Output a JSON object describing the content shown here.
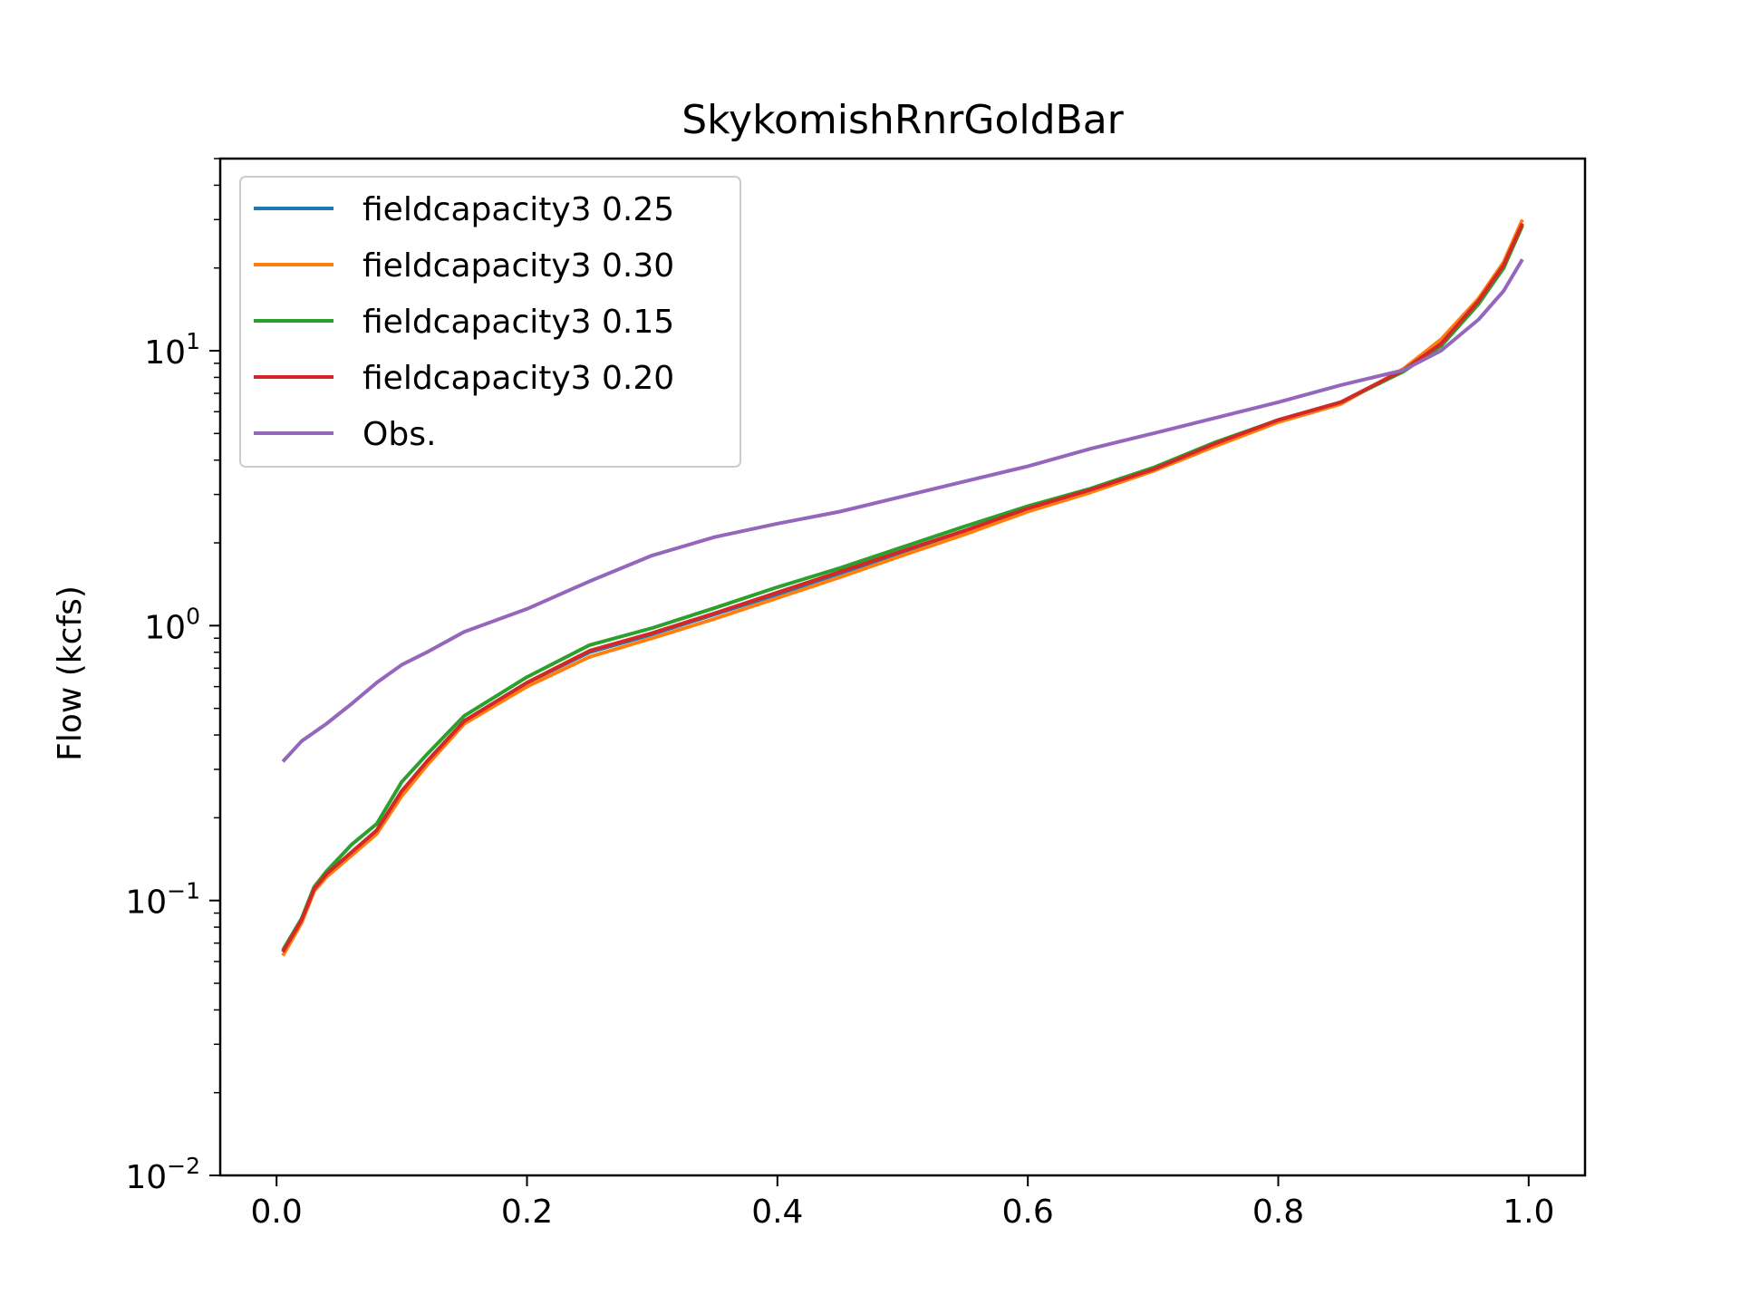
{
  "chart_data": {
    "type": "line",
    "title": "SkykomishRnrGoldBar",
    "xlabel": "",
    "ylabel": "Flow (kcfs)",
    "xlim": [
      -0.045,
      1.045
    ],
    "ylim": [
      0.01,
      50
    ],
    "y_scale": "log",
    "x_ticks": [
      "0.0",
      "0.2",
      "0.4",
      "0.6",
      "0.8",
      "1.0"
    ],
    "y_ticks": [
      {
        "base": "10",
        "exp": "−2",
        "value": 0.01
      },
      {
        "base": "10",
        "exp": "−1",
        "value": 0.1
      },
      {
        "base": "10",
        "exp": "0",
        "value": 1
      },
      {
        "base": "10",
        "exp": "1",
        "value": 10
      }
    ],
    "grid": false,
    "legend_position": "upper-left",
    "series": [
      {
        "name": "fieldcapacity3 0.25",
        "color": "#1f77b4",
        "x": [
          0.005,
          0.02,
          0.03,
          0.04,
          0.06,
          0.08,
          0.1,
          0.12,
          0.15,
          0.2,
          0.25,
          0.3,
          0.35,
          0.4,
          0.45,
          0.5,
          0.55,
          0.6,
          0.65,
          0.7,
          0.75,
          0.8,
          0.85,
          0.9,
          0.93,
          0.96,
          0.98,
          0.995
        ],
        "y": [
          0.065,
          0.085,
          0.11,
          0.125,
          0.15,
          0.18,
          0.25,
          0.32,
          0.45,
          0.62,
          0.8,
          0.93,
          1.1,
          1.3,
          1.55,
          1.85,
          2.2,
          2.65,
          3.1,
          3.7,
          4.6,
          5.6,
          6.5,
          8.5,
          10.5,
          15,
          20,
          29
        ]
      },
      {
        "name": "fieldcapacity3 0.30",
        "color": "#ff7f0e",
        "x": [
          0.005,
          0.02,
          0.03,
          0.04,
          0.06,
          0.08,
          0.1,
          0.12,
          0.15,
          0.2,
          0.25,
          0.3,
          0.35,
          0.4,
          0.45,
          0.5,
          0.55,
          0.6,
          0.65,
          0.7,
          0.75,
          0.8,
          0.85,
          0.9,
          0.93,
          0.96,
          0.98,
          0.995
        ],
        "y": [
          0.063,
          0.083,
          0.108,
          0.122,
          0.146,
          0.175,
          0.24,
          0.31,
          0.44,
          0.6,
          0.77,
          0.9,
          1.06,
          1.26,
          1.5,
          1.8,
          2.15,
          2.6,
          3.05,
          3.65,
          4.5,
          5.5,
          6.4,
          8.6,
          11,
          15.5,
          21,
          30
        ]
      },
      {
        "name": "fieldcapacity3 0.15",
        "color": "#2ca02c",
        "x": [
          0.005,
          0.02,
          0.03,
          0.04,
          0.06,
          0.08,
          0.1,
          0.12,
          0.15,
          0.2,
          0.25,
          0.3,
          0.35,
          0.4,
          0.45,
          0.5,
          0.55,
          0.6,
          0.65,
          0.7,
          0.75,
          0.8,
          0.85,
          0.9,
          0.93,
          0.96,
          0.98,
          0.995
        ],
        "y": [
          0.066,
          0.086,
          0.112,
          0.128,
          0.16,
          0.19,
          0.27,
          0.34,
          0.47,
          0.65,
          0.85,
          0.98,
          1.16,
          1.38,
          1.62,
          1.93,
          2.3,
          2.72,
          3.15,
          3.75,
          4.65,
          5.6,
          6.5,
          8.4,
          10.4,
          14.8,
          20,
          28.5
        ]
      },
      {
        "name": "fieldcapacity3 0.20",
        "color": "#d62728",
        "x": [
          0.005,
          0.02,
          0.03,
          0.04,
          0.06,
          0.08,
          0.1,
          0.12,
          0.15,
          0.2,
          0.25,
          0.3,
          0.35,
          0.4,
          0.45,
          0.5,
          0.55,
          0.6,
          0.65,
          0.7,
          0.75,
          0.8,
          0.85,
          0.9,
          0.93,
          0.96,
          0.98,
          0.995
        ],
        "y": [
          0.065,
          0.085,
          0.11,
          0.125,
          0.15,
          0.18,
          0.25,
          0.32,
          0.45,
          0.62,
          0.81,
          0.94,
          1.11,
          1.32,
          1.57,
          1.87,
          2.22,
          2.67,
          3.12,
          3.7,
          4.6,
          5.6,
          6.5,
          8.5,
          10.6,
          15.2,
          20.5,
          29
        ]
      },
      {
        "name": "Obs.",
        "color": "#9467bd",
        "x": [
          0.005,
          0.02,
          0.04,
          0.06,
          0.08,
          0.1,
          0.12,
          0.15,
          0.2,
          0.25,
          0.3,
          0.35,
          0.4,
          0.45,
          0.5,
          0.55,
          0.6,
          0.65,
          0.7,
          0.75,
          0.8,
          0.85,
          0.9,
          0.93,
          0.96,
          0.98,
          0.995
        ],
        "y": [
          0.32,
          0.38,
          0.44,
          0.52,
          0.62,
          0.72,
          0.8,
          0.95,
          1.15,
          1.45,
          1.8,
          2.1,
          2.35,
          2.6,
          2.95,
          3.35,
          3.8,
          4.4,
          5.0,
          5.7,
          6.5,
          7.5,
          8.5,
          10,
          13,
          16.5,
          21.5
        ]
      }
    ]
  }
}
